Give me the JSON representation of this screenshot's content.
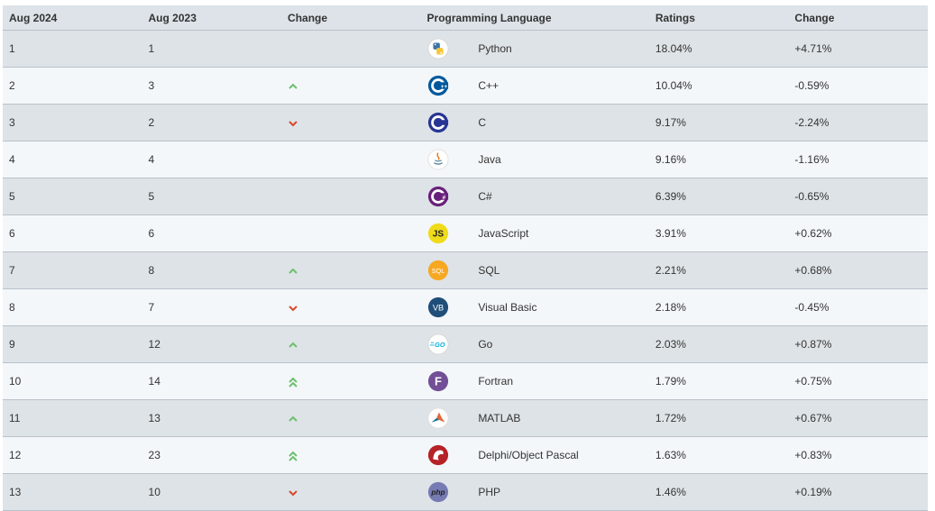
{
  "headers": [
    "Aug 2024",
    "Aug 2023",
    "Change",
    "Programming Language",
    "Ratings",
    "Change"
  ],
  "colors": {
    "up": "#6cc06c",
    "down": "#d9472b"
  },
  "rows": [
    {
      "rank": "1",
      "prev": "1",
      "change": "none",
      "icon": "python-logo-icon",
      "language": "Python",
      "rating": "18.04%",
      "delta": "+4.71%"
    },
    {
      "rank": "2",
      "prev": "3",
      "change": "up",
      "icon": "cpp-logo-icon",
      "language": "C++",
      "rating": "10.04%",
      "delta": "-0.59%"
    },
    {
      "rank": "3",
      "prev": "2",
      "change": "down",
      "icon": "c-logo-icon",
      "language": "C",
      "rating": "9.17%",
      "delta": "-2.24%"
    },
    {
      "rank": "4",
      "prev": "4",
      "change": "none",
      "icon": "java-logo-icon",
      "language": "Java",
      "rating": "9.16%",
      "delta": "-1.16%"
    },
    {
      "rank": "5",
      "prev": "5",
      "change": "none",
      "icon": "csharp-logo-icon",
      "language": "C#",
      "rating": "6.39%",
      "delta": "-0.65%"
    },
    {
      "rank": "6",
      "prev": "6",
      "change": "none",
      "icon": "javascript-logo-icon",
      "language": "JavaScript",
      "rating": "3.91%",
      "delta": "+0.62%"
    },
    {
      "rank": "7",
      "prev": "8",
      "change": "up",
      "icon": "sql-logo-icon",
      "language": "SQL",
      "rating": "2.21%",
      "delta": "+0.68%"
    },
    {
      "rank": "8",
      "prev": "7",
      "change": "down",
      "icon": "visual-basic-logo-icon",
      "language": "Visual Basic",
      "rating": "2.18%",
      "delta": "-0.45%"
    },
    {
      "rank": "9",
      "prev": "12",
      "change": "up",
      "icon": "go-logo-icon",
      "language": "Go",
      "rating": "2.03%",
      "delta": "+0.87%"
    },
    {
      "rank": "10",
      "prev": "14",
      "change": "double-up",
      "icon": "fortran-logo-icon",
      "language": "Fortran",
      "rating": "1.79%",
      "delta": "+0.75%"
    },
    {
      "rank": "11",
      "prev": "13",
      "change": "up",
      "icon": "matlab-logo-icon",
      "language": "MATLAB",
      "rating": "1.72%",
      "delta": "+0.67%"
    },
    {
      "rank": "12",
      "prev": "23",
      "change": "double-up",
      "icon": "delphi-logo-icon",
      "language": "Delphi/Object Pascal",
      "rating": "1.63%",
      "delta": "+0.83%"
    },
    {
      "rank": "13",
      "prev": "10",
      "change": "down",
      "icon": "php-logo-icon",
      "language": "PHP",
      "rating": "1.46%",
      "delta": "+0.19%"
    }
  ],
  "logo_text": {
    "js": "JS",
    "sql": "SQL",
    "vb": "VB",
    "go": "GO",
    "fortran": "F",
    "php": "php"
  }
}
